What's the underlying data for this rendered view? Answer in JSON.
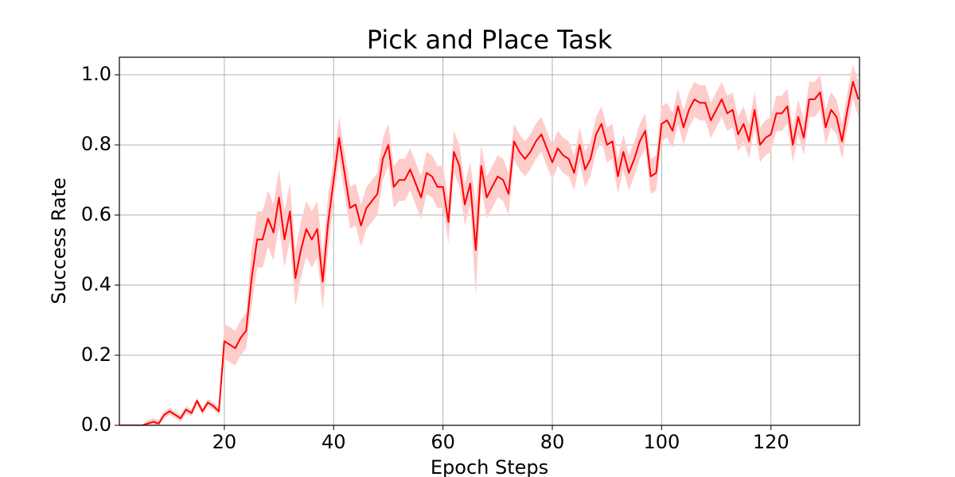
{
  "chart_data": {
    "type": "line",
    "title": "Pick and Place Task",
    "x_label": "Epoch Steps",
    "y_label": "Success Rate",
    "xlim": [
      0.8,
      136.2
    ],
    "ylim": [
      0,
      1.05
    ],
    "xticks": [
      20,
      40,
      60,
      80,
      100,
      120
    ],
    "yticks": [
      {
        "value": 0,
        "label": "0.0"
      },
      0.2,
      0.4,
      0.6,
      0.8,
      {
        "value": 1,
        "label": "1.0"
      }
    ],
    "grid": true,
    "x": [
      1,
      2,
      3,
      4,
      5,
      6,
      7,
      8,
      9,
      10,
      11,
      12,
      13,
      14,
      15,
      16,
      17,
      18,
      19,
      20,
      21,
      22,
      23,
      24,
      25,
      26,
      27,
      28,
      29,
      30,
      31,
      32,
      33,
      34,
      35,
      36,
      37,
      38,
      39,
      40,
      41,
      42,
      43,
      44,
      45,
      46,
      47,
      48,
      49,
      50,
      51,
      52,
      53,
      54,
      55,
      56,
      57,
      58,
      59,
      60,
      61,
      62,
      63,
      64,
      65,
      66,
      67,
      68,
      69,
      70,
      71,
      72,
      73,
      74,
      75,
      76,
      77,
      78,
      79,
      80,
      81,
      82,
      83,
      84,
      85,
      86,
      87,
      88,
      89,
      90,
      91,
      92,
      93,
      94,
      95,
      96,
      97,
      98,
      99,
      100,
      101,
      102,
      103,
      104,
      105,
      106,
      107,
      108,
      109,
      110,
      111,
      112,
      113,
      114,
      115,
      116,
      117,
      118,
      119,
      120,
      121,
      122,
      123,
      124,
      125,
      126,
      127,
      128,
      129,
      130,
      131,
      132,
      133,
      134,
      135,
      136
    ],
    "series": [
      {
        "color": "#ff0000",
        "band_color": "#ffcccc",
        "values": [
          0,
          0,
          0,
          0,
          0,
          0.005,
          0.01,
          0.005,
          0.03,
          0.04,
          0.03,
          0.02,
          0.045,
          0.035,
          0.07,
          0.04,
          0.065,
          0.055,
          0.04,
          0.24,
          0.23,
          0.22,
          0.25,
          0.27,
          0.42,
          0.53,
          0.53,
          0.59,
          0.55,
          0.65,
          0.53,
          0.61,
          0.42,
          0.5,
          0.56,
          0.53,
          0.56,
          0.41,
          0.58,
          0.7,
          0.82,
          0.72,
          0.62,
          0.63,
          0.57,
          0.62,
          0.64,
          0.66,
          0.76,
          0.8,
          0.68,
          0.7,
          0.7,
          0.73,
          0.69,
          0.65,
          0.72,
          0.71,
          0.68,
          0.68,
          0.58,
          0.78,
          0.74,
          0.63,
          0.69,
          0.5,
          0.74,
          0.65,
          0.68,
          0.71,
          0.7,
          0.66,
          0.81,
          0.78,
          0.76,
          0.78,
          0.81,
          0.83,
          0.79,
          0.75,
          0.79,
          0.77,
          0.76,
          0.72,
          0.8,
          0.73,
          0.76,
          0.83,
          0.86,
          0.8,
          0.81,
          0.71,
          0.78,
          0.72,
          0.76,
          0.81,
          0.84,
          0.71,
          0.72,
          0.86,
          0.87,
          0.84,
          0.91,
          0.85,
          0.9,
          0.93,
          0.92,
          0.92,
          0.87,
          0.9,
          0.93,
          0.89,
          0.9,
          0.83,
          0.86,
          0.81,
          0.9,
          0.8,
          0.82,
          0.83,
          0.89,
          0.89,
          0.91,
          0.8,
          0.88,
          0.82,
          0.93,
          0.93,
          0.95,
          0.85,
          0.9,
          0.88,
          0.81,
          0.9,
          0.98,
          0.93
        ],
        "upper": [
          0,
          0,
          0,
          0,
          0,
          0.015,
          0.02,
          0.015,
          0.04,
          0.05,
          0.04,
          0.03,
          0.055,
          0.045,
          0.08,
          0.05,
          0.075,
          0.065,
          0.05,
          0.29,
          0.28,
          0.27,
          0.3,
          0.32,
          0.5,
          0.61,
          0.61,
          0.67,
          0.63,
          0.73,
          0.61,
          0.69,
          0.5,
          0.58,
          0.64,
          0.61,
          0.64,
          0.49,
          0.66,
          0.76,
          0.88,
          0.78,
          0.68,
          0.69,
          0.63,
          0.68,
          0.7,
          0.72,
          0.82,
          0.86,
          0.74,
          0.76,
          0.76,
          0.79,
          0.75,
          0.71,
          0.78,
          0.77,
          0.74,
          0.74,
          0.64,
          0.84,
          0.8,
          0.69,
          0.75,
          0.63,
          0.8,
          0.71,
          0.74,
          0.77,
          0.76,
          0.72,
          0.86,
          0.83,
          0.81,
          0.83,
          0.86,
          0.88,
          0.84,
          0.8,
          0.84,
          0.82,
          0.81,
          0.77,
          0.85,
          0.78,
          0.81,
          0.88,
          0.91,
          0.85,
          0.86,
          0.76,
          0.83,
          0.77,
          0.81,
          0.86,
          0.89,
          0.76,
          0.77,
          0.91,
          0.92,
          0.89,
          0.96,
          0.9,
          0.95,
          0.98,
          0.97,
          0.97,
          0.92,
          0.95,
          0.98,
          0.94,
          0.95,
          0.88,
          0.91,
          0.86,
          0.95,
          0.85,
          0.87,
          0.88,
          0.94,
          0.94,
          0.96,
          0.85,
          0.93,
          0.87,
          0.98,
          0.98,
          1.0,
          0.9,
          0.95,
          0.93,
          0.86,
          0.95,
          1.03,
          0.98
        ],
        "lower": [
          0,
          0,
          0,
          0,
          0,
          0,
          0,
          0,
          0.02,
          0.03,
          0.02,
          0.01,
          0.035,
          0.025,
          0.06,
          0.03,
          0.055,
          0.045,
          0.03,
          0.19,
          0.18,
          0.17,
          0.2,
          0.22,
          0.34,
          0.45,
          0.45,
          0.51,
          0.47,
          0.57,
          0.45,
          0.53,
          0.34,
          0.42,
          0.48,
          0.45,
          0.48,
          0.33,
          0.5,
          0.64,
          0.76,
          0.66,
          0.56,
          0.57,
          0.51,
          0.56,
          0.58,
          0.6,
          0.7,
          0.74,
          0.62,
          0.64,
          0.64,
          0.67,
          0.63,
          0.59,
          0.66,
          0.65,
          0.62,
          0.62,
          0.52,
          0.72,
          0.68,
          0.57,
          0.63,
          0.37,
          0.68,
          0.59,
          0.62,
          0.65,
          0.64,
          0.6,
          0.76,
          0.73,
          0.71,
          0.73,
          0.76,
          0.78,
          0.74,
          0.7,
          0.74,
          0.72,
          0.71,
          0.67,
          0.75,
          0.68,
          0.71,
          0.78,
          0.81,
          0.75,
          0.76,
          0.66,
          0.73,
          0.67,
          0.71,
          0.76,
          0.79,
          0.66,
          0.67,
          0.81,
          0.82,
          0.79,
          0.86,
          0.8,
          0.85,
          0.88,
          0.87,
          0.87,
          0.82,
          0.85,
          0.88,
          0.84,
          0.85,
          0.78,
          0.81,
          0.76,
          0.85,
          0.75,
          0.77,
          0.78,
          0.84,
          0.84,
          0.86,
          0.75,
          0.83,
          0.77,
          0.88,
          0.88,
          0.9,
          0.8,
          0.85,
          0.83,
          0.76,
          0.85,
          0.93,
          0.88
        ]
      }
    ]
  }
}
